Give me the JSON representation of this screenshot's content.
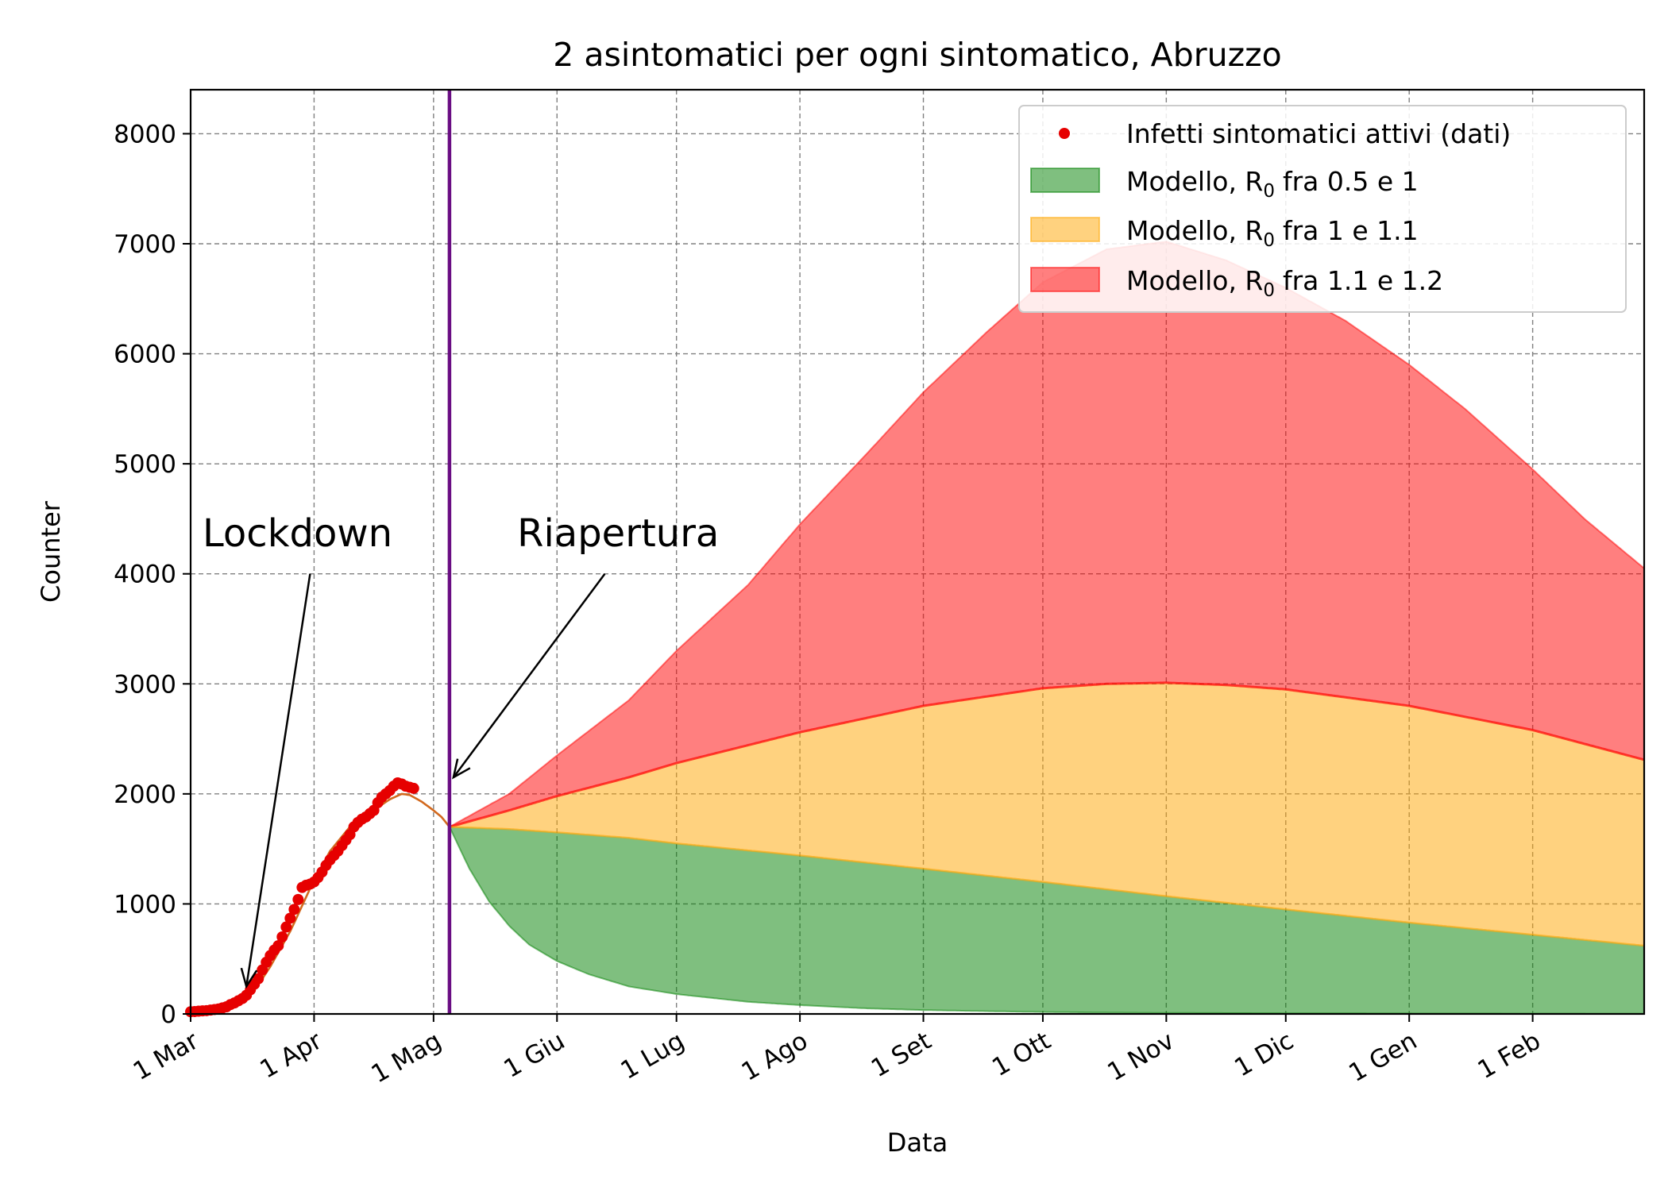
{
  "chart_data": {
    "type": "area",
    "title": "2 asintomatici per ogni sintomatico, Abruzzo",
    "xlabel": "Data",
    "ylabel": "Counter",
    "ylim": [
      0,
      8400
    ],
    "yticks": [
      0,
      1000,
      2000,
      3000,
      4000,
      5000,
      6000,
      7000,
      8000
    ],
    "xlim_day": [
      0,
      365
    ],
    "xticks": [
      {
        "label": "1 Mar",
        "day": 0
      },
      {
        "label": "1 Apr",
        "day": 31
      },
      {
        "label": "1 Mag",
        "day": 61
      },
      {
        "label": "1 Giu",
        "day": 92
      },
      {
        "label": "1 Lug",
        "day": 122
      },
      {
        "label": "1 Ago",
        "day": 153
      },
      {
        "label": "1 Set",
        "day": 184
      },
      {
        "label": "1 Ott",
        "day": 214
      },
      {
        "label": "1 Nov",
        "day": 245
      },
      {
        "label": "1 Dic",
        "day": 275
      },
      {
        "label": "1 Gen",
        "day": 306
      },
      {
        "label": "1 Feb",
        "day": 337
      }
    ],
    "grid": true,
    "legend_position": "top-right",
    "reopening_day": 65,
    "colors": {
      "data_points": "#e60000",
      "fit_line": "#d2691e",
      "reopening_line": "#6a0d83",
      "green_fill": "#008000",
      "yellow_fill": "#ffa500",
      "red_fill": "#ff0000"
    },
    "legend": [
      "Infetti sintomatici attivi (dati)",
      "Modello, R",
      "Modello, R",
      "Modello, R"
    ],
    "legend_ranges": [
      "fra 0.5 e 1",
      "fra 1 e 1.1",
      "fra 1.1 e 1.2"
    ],
    "r_subscript": "0",
    "annotations": [
      {
        "text": "Lockdown",
        "text_day": 3,
        "text_value": 4250,
        "arrow_from_day": 30,
        "arrow_from_value": 4000,
        "arrow_to_day": 14,
        "arrow_to_value": 250
      },
      {
        "text": "Riapertura",
        "text_day": 82,
        "text_value": 4250,
        "arrow_from_day": 104,
        "arrow_from_value": 4000,
        "arrow_to_day": 66,
        "arrow_to_value": 2150
      }
    ],
    "observed": [
      [
        0,
        20
      ],
      [
        1,
        22
      ],
      [
        2,
        25
      ],
      [
        3,
        28
      ],
      [
        4,
        30
      ],
      [
        5,
        35
      ],
      [
        6,
        40
      ],
      [
        7,
        45
      ],
      [
        8,
        55
      ],
      [
        9,
        65
      ],
      [
        10,
        85
      ],
      [
        11,
        100
      ],
      [
        12,
        120
      ],
      [
        13,
        140
      ],
      [
        14,
        170
      ],
      [
        15,
        220
      ],
      [
        16,
        270
      ],
      [
        17,
        320
      ],
      [
        18,
        400
      ],
      [
        19,
        470
      ],
      [
        20,
        530
      ],
      [
        21,
        580
      ],
      [
        22,
        620
      ],
      [
        23,
        700
      ],
      [
        24,
        790
      ],
      [
        25,
        870
      ],
      [
        26,
        950
      ],
      [
        27,
        1040
      ],
      [
        28,
        1150
      ],
      [
        29,
        1170
      ],
      [
        30,
        1180
      ],
      [
        31,
        1200
      ],
      [
        32,
        1240
      ],
      [
        33,
        1290
      ],
      [
        34,
        1350
      ],
      [
        35,
        1400
      ],
      [
        36,
        1440
      ],
      [
        37,
        1480
      ],
      [
        38,
        1530
      ],
      [
        39,
        1580
      ],
      [
        40,
        1630
      ],
      [
        41,
        1700
      ],
      [
        42,
        1740
      ],
      [
        43,
        1770
      ],
      [
        44,
        1790
      ],
      [
        45,
        1820
      ],
      [
        46,
        1850
      ],
      [
        47,
        1920
      ],
      [
        48,
        1970
      ],
      [
        49,
        2000
      ],
      [
        50,
        2030
      ],
      [
        51,
        2070
      ],
      [
        52,
        2100
      ],
      [
        53,
        2090
      ],
      [
        54,
        2070
      ],
      [
        55,
        2060
      ],
      [
        56,
        2050
      ]
    ],
    "fit": [
      [
        0,
        5
      ],
      [
        5,
        15
      ],
      [
        10,
        50
      ],
      [
        15,
        180
      ],
      [
        18,
        320
      ],
      [
        20,
        430
      ],
      [
        25,
        750
      ],
      [
        30,
        1140
      ],
      [
        35,
        1480
      ],
      [
        40,
        1700
      ],
      [
        45,
        1830
      ],
      [
        50,
        1950
      ],
      [
        53,
        2000
      ],
      [
        55,
        1990
      ],
      [
        58,
        1930
      ],
      [
        61,
        1850
      ],
      [
        63,
        1790
      ],
      [
        65,
        1700
      ]
    ],
    "band_low_r05": [
      [
        65,
        1700
      ],
      [
        70,
        1320
      ],
      [
        75,
        1020
      ],
      [
        80,
        800
      ],
      [
        85,
        630
      ],
      [
        92,
        480
      ],
      [
        100,
        360
      ],
      [
        110,
        250
      ],
      [
        122,
        180
      ],
      [
        140,
        110
      ],
      [
        153,
        80
      ],
      [
        170,
        50
      ],
      [
        184,
        35
      ],
      [
        200,
        25
      ],
      [
        214,
        18
      ],
      [
        230,
        12
      ],
      [
        245,
        9
      ],
      [
        275,
        6
      ],
      [
        306,
        4
      ],
      [
        337,
        3
      ],
      [
        365,
        2
      ]
    ],
    "band_r1": [
      [
        65,
        1700
      ],
      [
        80,
        1680
      ],
      [
        92,
        1650
      ],
      [
        110,
        1600
      ],
      [
        122,
        1550
      ],
      [
        153,
        1440
      ],
      [
        184,
        1320
      ],
      [
        214,
        1200
      ],
      [
        245,
        1070
      ],
      [
        275,
        950
      ],
      [
        306,
        830
      ],
      [
        337,
        720
      ],
      [
        365,
        620
      ]
    ],
    "band_r11": [
      [
        65,
        1700
      ],
      [
        80,
        1850
      ],
      [
        92,
        1980
      ],
      [
        110,
        2150
      ],
      [
        122,
        2280
      ],
      [
        153,
        2560
      ],
      [
        184,
        2800
      ],
      [
        214,
        2960
      ],
      [
        230,
        3000
      ],
      [
        245,
        3010
      ],
      [
        260,
        2990
      ],
      [
        275,
        2950
      ],
      [
        306,
        2800
      ],
      [
        337,
        2580
      ],
      [
        365,
        2310
      ]
    ],
    "band_r12": [
      [
        65,
        1700
      ],
      [
        80,
        2000
      ],
      [
        92,
        2350
      ],
      [
        110,
        2850
      ],
      [
        122,
        3300
      ],
      [
        140,
        3900
      ],
      [
        153,
        4450
      ],
      [
        170,
        5100
      ],
      [
        184,
        5650
      ],
      [
        200,
        6200
      ],
      [
        214,
        6650
      ],
      [
        230,
        6950
      ],
      [
        245,
        7020
      ],
      [
        260,
        6850
      ],
      [
        275,
        6600
      ],
      [
        290,
        6300
      ],
      [
        306,
        5900
      ],
      [
        320,
        5500
      ],
      [
        337,
        4950
      ],
      [
        350,
        4500
      ],
      [
        365,
        4050
      ]
    ]
  }
}
